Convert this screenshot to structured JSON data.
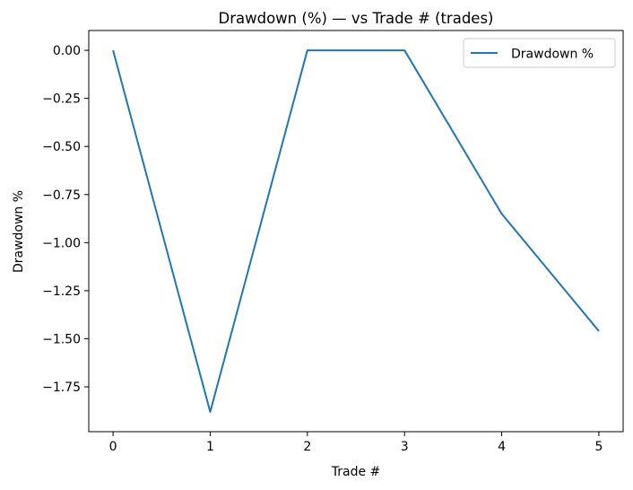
{
  "chart_data": {
    "type": "line",
    "title": "Drawdown (%) — vs Trade # (trades)",
    "xlabel": "Trade #",
    "ylabel": "Drawdown %",
    "xlim": [
      -0.25,
      5.25
    ],
    "ylim": [
      -1.983,
      0.103
    ],
    "xticks": [
      0,
      1,
      2,
      3,
      4,
      5
    ],
    "xtick_labels": [
      "0",
      "1",
      "2",
      "3",
      "4",
      "5"
    ],
    "yticks": [
      0,
      -0.25,
      -0.5,
      -0.75,
      -1.0,
      -1.25,
      -1.5,
      -1.75
    ],
    "ytick_labels": [
      "0.00",
      "−0.25",
      "−0.50",
      "−0.75",
      "−1.00",
      "−1.25",
      "−1.50",
      "−1.75"
    ],
    "grid": false,
    "legend_position": "top-right",
    "series": [
      {
        "name": "Drawdown %",
        "color": "#1f77b4",
        "x": [
          0,
          1,
          2,
          3,
          4,
          5
        ],
        "y": [
          0.0,
          -1.88,
          0.0,
          0.0,
          -0.85,
          -1.46
        ]
      }
    ]
  }
}
